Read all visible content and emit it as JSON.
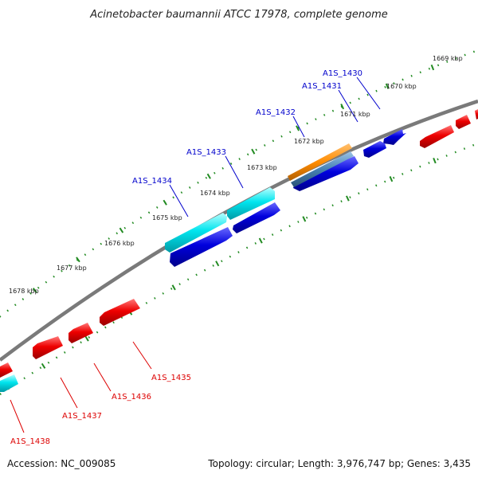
{
  "title": "Acinetobacter baumannii ATCC 17978, complete genome",
  "accession": "Accession: NC_009085",
  "summary": "Topology: circular; Length: 3,976,747 bp; Genes: 3,435",
  "colors": {
    "forward_label": "#0000cc",
    "reverse_label": "#dd0000",
    "cds_forward": "#0000dd",
    "cds_reverse": "#ee0000",
    "feature_cyan": "#00e5ee",
    "feature_orange": "#ff8c00",
    "feature_steel": "#4682b4",
    "backbone": "#7a7a7a",
    "tick_dot": "#228b22"
  },
  "ticks": [
    "1669 kbp",
    "1670 kbp",
    "1671 kbp",
    "1672 kbp",
    "1673 kbp",
    "1674 kbp",
    "1675 kbp",
    "1676 kbp",
    "1677 kbp",
    "1678 kbp"
  ],
  "forward_genes": [
    "A1S_1430",
    "A1S_1431",
    "A1S_1432",
    "A1S_1433",
    "A1S_1434"
  ],
  "reverse_genes": [
    "A1S_1435",
    "A1S_1436",
    "A1S_1437",
    "A1S_1438"
  ]
}
